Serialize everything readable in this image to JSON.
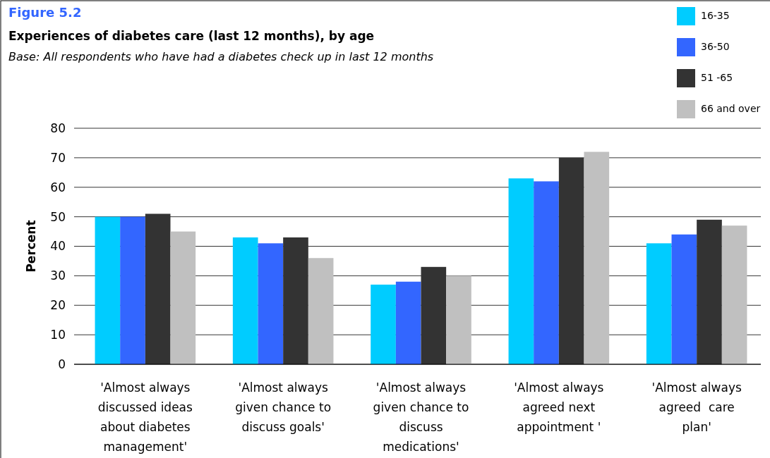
{
  "chart_data": {
    "type": "bar",
    "title": "Figure 5.2",
    "subtitle": "Experiences of diabetes care (last 12 months), by age",
    "annotations": [
      "Base: All respondents who have had a diabetes check up in last 12 months"
    ],
    "ylabel": "Percent",
    "categories": [
      "'Almost always discussed ideas about diabetes management'",
      "'Almost always given chance to discuss goals'",
      "'Almost always given chance to discuss medications'",
      "'Almost always agreed next appointment '",
      "'Almost always agreed  care plan'"
    ],
    "series": [
      {
        "name": "16-35",
        "color": "#00ccff",
        "values": [
          50,
          43,
          27,
          63,
          41
        ]
      },
      {
        "name": "36-50",
        "color": "#3366ff",
        "values": [
          50,
          41,
          28,
          62,
          44
        ]
      },
      {
        "name": "51 -65",
        "color": "#333333",
        "values": [
          51,
          43,
          33,
          70,
          49
        ]
      },
      {
        "name": "66 and over",
        "color": "#c0c0c0",
        "values": [
          45,
          36,
          30,
          72,
          47
        ]
      }
    ],
    "ylim": [
      0,
      80
    ],
    "yticks": [
      0,
      10,
      20,
      30,
      40,
      50,
      60,
      70,
      80
    ],
    "grid": "y",
    "legend": "top right"
  }
}
